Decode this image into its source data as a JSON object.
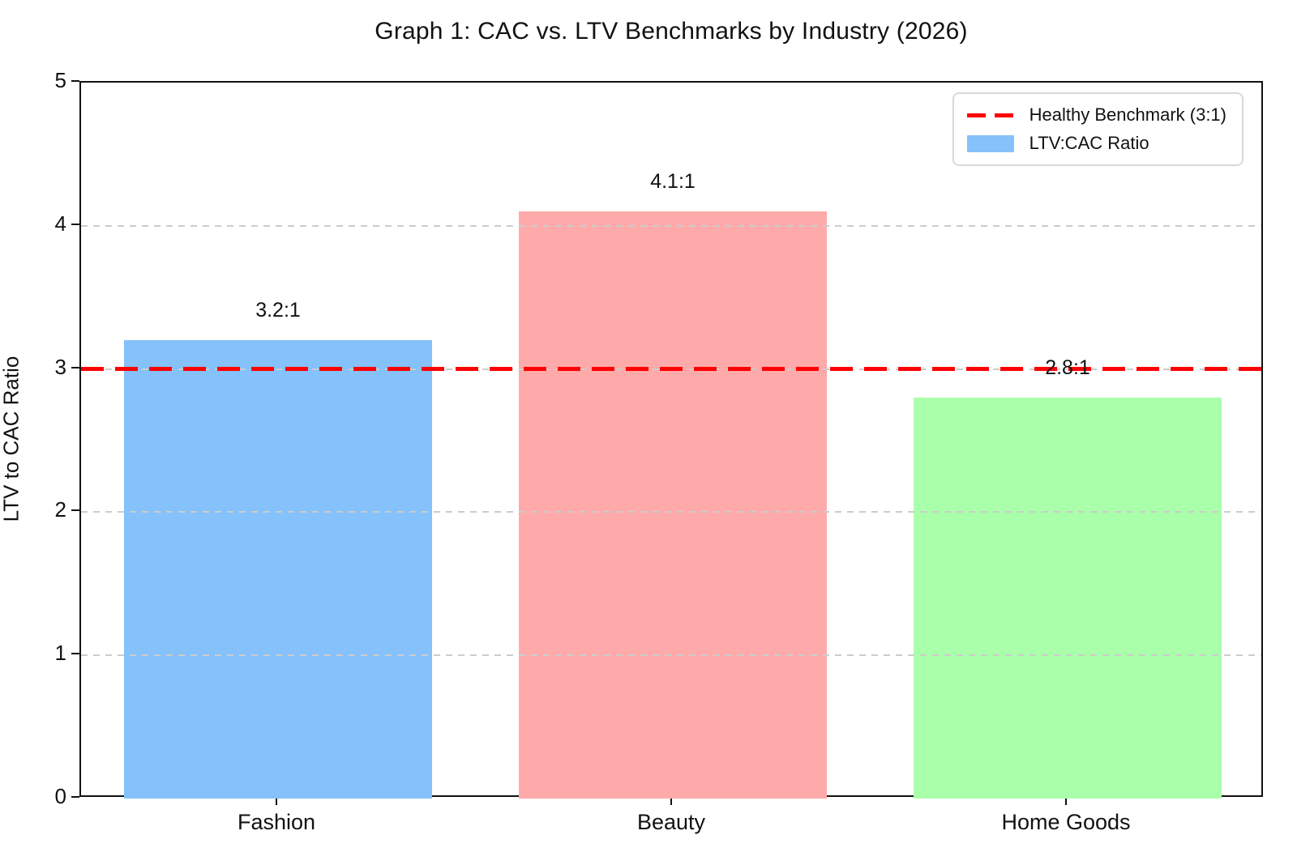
{
  "chart_data": {
    "type": "bar",
    "title": "Graph 1: CAC vs. LTV Benchmarks by Industry (2026)",
    "ylabel": "LTV to CAC Ratio",
    "xlabel": "",
    "categories": [
      "Fashion",
      "Beauty",
      "Home Goods"
    ],
    "values": [
      3.2,
      4.1,
      2.8
    ],
    "bar_labels": [
      "3.2:1",
      "4.1:1",
      "2.8:1"
    ],
    "bar_colors": [
      "#85c1fa",
      "#ffaaaa",
      "#aaffaa"
    ],
    "ylim": [
      0,
      5
    ],
    "yticks": [
      0,
      1,
      2,
      3,
      4,
      5
    ],
    "grid": "horizontal dashed gridlines at 1,2,3,4 drawn above bars",
    "legend_position": "upper right",
    "benchmark": {
      "value": 3,
      "color": "#ff0000",
      "style": "dashed",
      "label": "Healthy Benchmark (3:1)"
    },
    "legend": {
      "entries": [
        {
          "label": "Healthy Benchmark (3:1)",
          "swatch": "red-dashed-line",
          "color": "#ff0000"
        },
        {
          "label": "LTV:CAC Ratio",
          "swatch": "blue-patch",
          "color": "#85c1fa"
        }
      ]
    },
    "colors": {
      "grid": "#cccccc",
      "spine": "#111111",
      "text": "#111111",
      "background": "#ffffff"
    }
  }
}
